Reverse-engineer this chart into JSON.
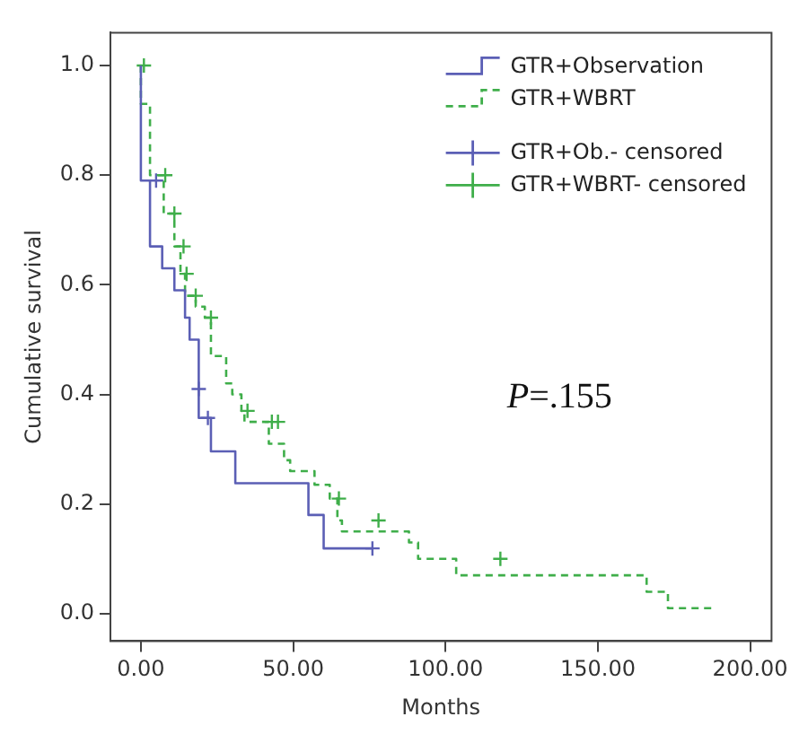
{
  "chart_data": {
    "type": "step",
    "xlabel": "Months",
    "ylabel": "Cumulative survival",
    "xlim": [
      -10,
      207
    ],
    "ylim": [
      -0.05,
      1.06
    ],
    "xticks": [
      {
        "value": 0,
        "label": "0.00"
      },
      {
        "value": 50,
        "label": "50.00"
      },
      {
        "value": 100,
        "label": "100.00"
      },
      {
        "value": 150,
        "label": "150.00"
      },
      {
        "value": 200,
        "label": "200.00"
      }
    ],
    "yticks": [
      {
        "value": 0,
        "label": "0.0"
      },
      {
        "value": 0.2,
        "label": "0.2"
      },
      {
        "value": 0.4,
        "label": "0.4"
      },
      {
        "value": 0.6,
        "label": "0.6"
      },
      {
        "value": 0.8,
        "label": "0.8"
      },
      {
        "value": 1,
        "label": "1.0"
      }
    ],
    "grid": false,
    "legend": "top right",
    "annotations": [
      "P=.155"
    ],
    "series": [
      {
        "name": "GTR+Observation",
        "color": "#5b5fb5",
        "line_style": "solid",
        "x": [
          0,
          3,
          7,
          11,
          14.5,
          16,
          19,
          23,
          31,
          55,
          60,
          76
        ],
        "values": [
          1,
          0.79,
          0.67,
          0.63,
          0.59,
          0.54,
          0.5,
          0.357,
          0.296,
          0.238,
          0.18,
          0.119
        ]
      },
      {
        "name": "GTR+WBRT",
        "color": "#3fae4a",
        "line_style": "dashed",
        "x": [
          0,
          3,
          7.5,
          11,
          13,
          14.5,
          18,
          21,
          23,
          28,
          30,
          33,
          34,
          42,
          47,
          49,
          57,
          62,
          64.5,
          66,
          88,
          91,
          103.5,
          166,
          173,
          188
        ],
        "values": [
          1,
          0.93,
          0.8,
          0.73,
          0.67,
          0.62,
          0.58,
          0.56,
          0.54,
          0.47,
          0.42,
          0.4,
          0.37,
          0.35,
          0.31,
          0.28,
          0.26,
          0.235,
          0.21,
          0.17,
          0.15,
          0.13,
          0.1,
          0.07,
          0.04,
          0.01
        ]
      },
      {
        "name": "GTR+Ob.- censored",
        "type": "scatter",
        "marker": "cross",
        "color": "#5b5fb5",
        "x": [
          5,
          19,
          22,
          76
        ],
        "values": [
          0.79,
          0.41,
          0.357,
          0.119
        ]
      },
      {
        "name": "GTR+WBRT- censored",
        "type": "scatter",
        "marker": "cross",
        "color": "#3fae4a",
        "x": [
          1,
          8,
          11,
          14,
          15,
          18,
          23,
          35,
          43,
          45,
          65,
          78,
          118
        ],
        "values": [
          1,
          0.8,
          0.73,
          0.67,
          0.62,
          0.58,
          0.54,
          0.37,
          0.35,
          0.35,
          0.21,
          0.17,
          0.1
        ]
      }
    ]
  }
}
